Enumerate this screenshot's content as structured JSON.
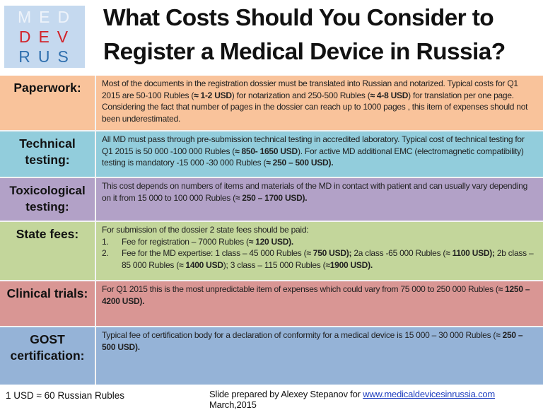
{
  "logo": {
    "line1": "MED",
    "line2": "DEV",
    "line3": "RUS",
    "colors": {
      "background": "#c5d9ef",
      "line1": "#eef3fa",
      "line2": "#d2232a",
      "line3": "#2f6fae"
    }
  },
  "title": {
    "line1": "What Costs Should You Consider to",
    "line2": "Register a Medical Device in Russia?"
  },
  "rows": [
    {
      "label": "Paperwork:",
      "color": "#f9c39b",
      "text": {
        "p1": "Most of  the documents in the registration dossier must be translated into Russian and notarized. Typical costs for Q1 2015 are 50-100 Rubles (",
        "b1": "≈ 1-2 USD",
        "p2": ") for notarization and 250-500 Rubles (",
        "b2": "≈ 4-8 USD",
        "p3": ") for translation per one page. Considering the fact that number of pages in the dossier can reach up to 1000 pages , this item of expenses should not been underestimated."
      }
    },
    {
      "label_line1": "Technical",
      "label_line2": "testing:",
      "color": "#92cddc",
      "text": {
        "p1": "All MD must pass through pre-submission technical testing in accredited laboratory. Typical cost of technical testing for Q1 2015 is 50 000 -100 000 Rubles (",
        "b1": "≈ 850- 1650 USD",
        "p2": "). For active MD additional  EMC (electromagnetic compatibility) testing is mandatory  -15 000 -30 000 Rubles (",
        "b2": "≈ 250 – 500 USD)."
      }
    },
    {
      "label_line1": "Toxicological",
      "label_line2": "testing:",
      "color": "#b2a1c7",
      "text": {
        "p1": "This cost depends on numbers of items and materials of the MD in contact with patient and can usually vary depending on it  from 15 000  to 100 000 Rubles (",
        "b1": "≈ 250 – 1700 USD)."
      }
    },
    {
      "label": "State fees:",
      "color": "#c3d69b",
      "text": {
        "intro": "For submission of the dossier 2 state fees should be paid:",
        "items": [
          {
            "num": "1.",
            "p1": "Fee for registration – 7000 Rubles (",
            "b1": "≈ 120 USD)."
          },
          {
            "num": "2.",
            "p1": "Fee for the  MD expertise:  1 class – 45 000 Rubles (",
            "b1": "≈ 750 USD);",
            "p2": " 2a class -65 000 Rubles (",
            "b2": "≈ 1100 USD);",
            "p3": " 2b class – 85 000 Rubles (",
            "b3": "≈ 1400 USD",
            "p4": "); 3 class – 115 000 Rubles (",
            "b4": "≈1900 USD)."
          }
        ]
      }
    },
    {
      "label": "Clinical trials:",
      "color": "#d99694",
      "text": {
        "p1": "For Q1 2015 this is the most unpredictable item of expenses which could vary from 75 000  to 250 000 Rubles (",
        "b1": "≈ 1250 – 4200 USD",
        "p2": ")."
      }
    },
    {
      "label_line1": "GOST",
      "label_line2": "certification:",
      "color": "#95b3d7",
      "text": {
        "p1": "Typical  fee of certification body for a declaration of conformity for a medical device is 15 000 – 30 000 Rubles (",
        "b1": "≈ 250 – 500 USD)."
      }
    }
  ],
  "footer": {
    "rate": "1 USD ≈ 60 Russian Rubles",
    "credit_prefix": "Slide prepared by Alexey Stepanov for ",
    "link": "www.medicaldevicesinrussia.com",
    "credit_suffix": " March,2015"
  }
}
